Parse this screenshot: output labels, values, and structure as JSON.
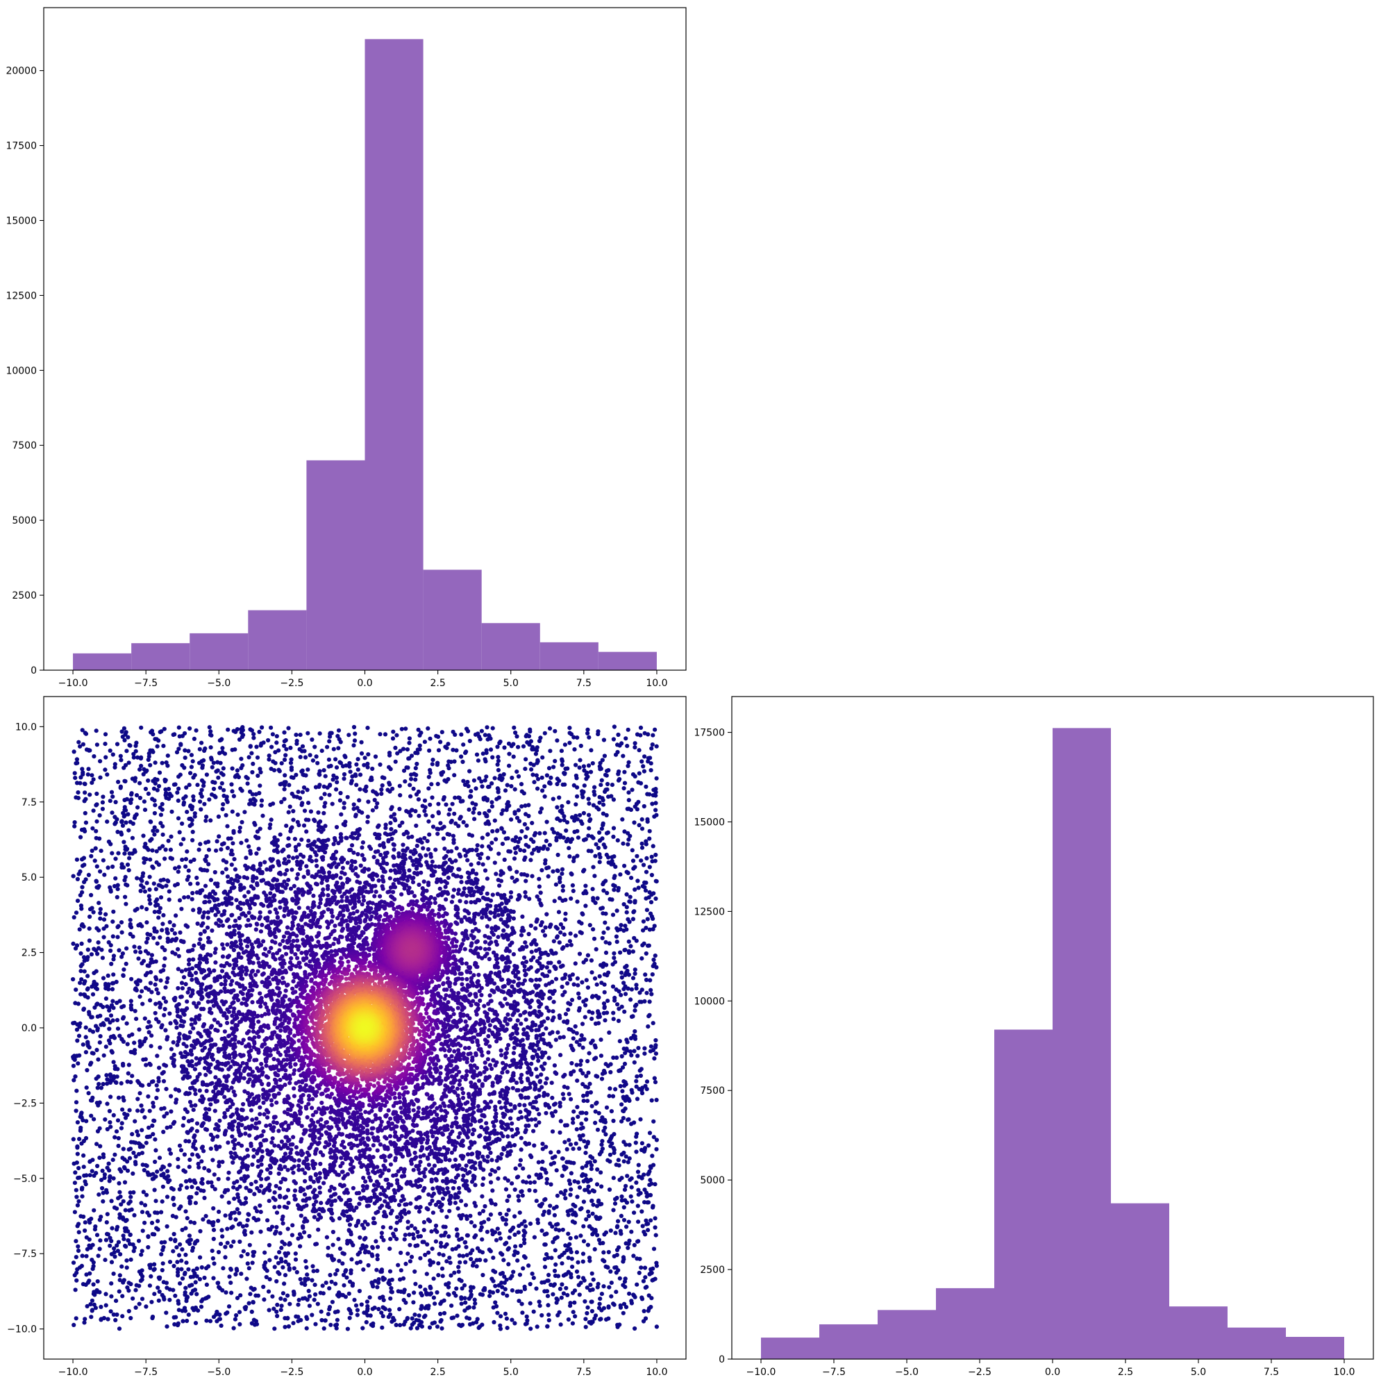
{
  "colors": {
    "bar": "#9467bd",
    "scatter_low": "#2a0593",
    "scatter_high": "#f0f921",
    "colormap": "plasma"
  },
  "chart_data": [
    {
      "id": "top-left-histogram",
      "type": "bar",
      "bin_edges": [
        -10,
        -8,
        -6,
        -4,
        -2,
        0,
        2,
        4,
        6,
        8,
        10
      ],
      "values": [
        560,
        900,
        1230,
        2000,
        7000,
        21050,
        3350,
        1570,
        930,
        610
      ],
      "xlim": [
        -11,
        11
      ],
      "ylim": [
        0,
        22100
      ],
      "xticks": [
        -10.0,
        -7.5,
        -5.0,
        -2.5,
        0.0,
        2.5,
        5.0,
        7.5,
        10.0
      ],
      "xtick_labels": [
        "−10.0",
        "−7.5",
        "−5.0",
        "−2.5",
        "0.0",
        "2.5",
        "5.0",
        "7.5",
        "10.0"
      ],
      "yticks": [
        0,
        2500,
        5000,
        7500,
        10000,
        12500,
        15000,
        17500,
        20000
      ],
      "ytick_labels": [
        "0",
        "2500",
        "5000",
        "7500",
        "10000",
        "12500",
        "15000",
        "17500",
        "20000"
      ],
      "title": "",
      "xlabel": "",
      "ylabel": ""
    },
    {
      "id": "bottom-left-scatter",
      "type": "scatter",
      "description_of_points": "dense points uniform over [-10,10]x[-10,10] with two bright clusters near (0,0) and (1.6,2.6), colored by local density (plasma colormap)",
      "clusters": [
        {
          "center": [
            0,
            0
          ],
          "spread": 1.6
        },
        {
          "center": [
            1.6,
            2.6
          ],
          "spread": 1.0
        }
      ],
      "xlim": [
        -11,
        11
      ],
      "ylim": [
        -11,
        11
      ],
      "xticks": [
        -10.0,
        -7.5,
        -5.0,
        -2.5,
        0.0,
        2.5,
        5.0,
        7.5,
        10.0
      ],
      "xtick_labels": [
        "−10.0",
        "−7.5",
        "−5.0",
        "−2.5",
        "0.0",
        "2.5",
        "5.0",
        "7.5",
        "10.0"
      ],
      "yticks": [
        -10.0,
        -7.5,
        -5.0,
        -2.5,
        0.0,
        2.5,
        5.0,
        7.5,
        10.0
      ],
      "ytick_labels": [
        "−10.0",
        "−7.5",
        "−5.0",
        "−2.5",
        "0.0",
        "2.5",
        "5.0",
        "7.5",
        "10.0"
      ],
      "title": "",
      "xlabel": "",
      "ylabel": ""
    },
    {
      "id": "bottom-right-histogram",
      "type": "bar",
      "bin_edges": [
        -10,
        -8,
        -6,
        -4,
        -2,
        0,
        2,
        4,
        6,
        8,
        10
      ],
      "values": [
        600,
        970,
        1370,
        1980,
        9200,
        17620,
        4350,
        1470,
        880,
        620
      ],
      "xlim": [
        -11,
        11
      ],
      "ylim": [
        0,
        18500
      ],
      "xticks": [
        -10.0,
        -7.5,
        -5.0,
        -2.5,
        0.0,
        2.5,
        5.0,
        7.5,
        10.0
      ],
      "xtick_labels": [
        "−10.0",
        "−7.5",
        "−5.0",
        "−2.5",
        "0.0",
        "2.5",
        "5.0",
        "7.5",
        "10.0"
      ],
      "yticks": [
        0,
        2500,
        5000,
        7500,
        10000,
        12500,
        15000,
        17500
      ],
      "ytick_labels": [
        "0",
        "2500",
        "5000",
        "7500",
        "10000",
        "12500",
        "15000",
        "17500"
      ],
      "title": "",
      "xlabel": "",
      "ylabel": ""
    }
  ]
}
